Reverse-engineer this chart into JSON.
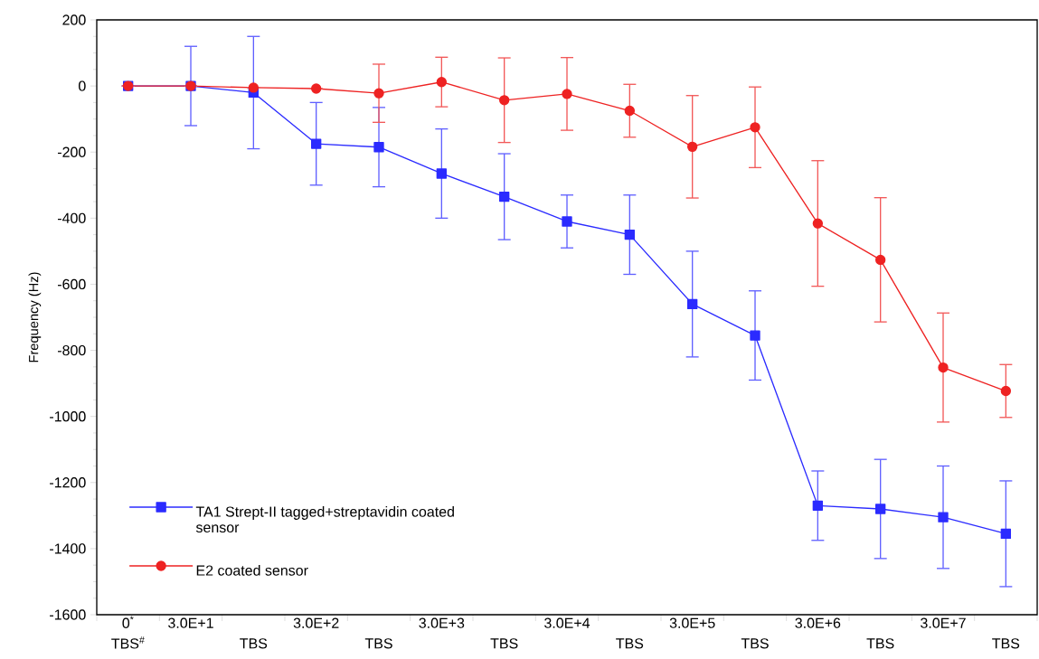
{
  "chart_data": {
    "type": "line",
    "ylabel": "Frequency (Hz)",
    "categories": [
      "0$^{*}$",
      "3.0E+1",
      "TBS",
      "3.0E+2",
      "TBS",
      "3.0E+3",
      "TBS",
      "3.0E+4",
      "TBS",
      "3.0E+5",
      "TBS",
      "3.0E+6",
      "TBS",
      "3.0E+7",
      "TBS"
    ],
    "annotations": [
      "TBS$^{#}$"
    ],
    "series": [
      {
        "name": "TA1 Strept-II tagged+streptavidin coated sensor",
        "color": "#2b2bff",
        "marker": "square",
        "values": [
          0,
          0,
          -20,
          -175,
          -185,
          -265,
          -335,
          -410,
          -450,
          -660,
          -755,
          -1270,
          -1280,
          -1305,
          -1355
        ],
        "errors": [
          null,
          120,
          170,
          125,
          120,
          135,
          130,
          80,
          120,
          160,
          135,
          105,
          150,
          155,
          160
        ]
      },
      {
        "name": "E2 coated sensor",
        "color": "#ee2222",
        "marker": "circle",
        "values": [
          0,
          0,
          -5,
          -8,
          -22,
          12,
          -43,
          -24,
          -75,
          -184,
          -125,
          -416,
          -526,
          -852,
          -923
        ],
        "errors": [
          null,
          null,
          null,
          null,
          88,
          75,
          128,
          110,
          80,
          155,
          122,
          190,
          188,
          165,
          80
        ]
      }
    ],
    "ylim": [
      -1600,
      200
    ],
    "yticks": [
      -1600,
      -1400,
      -1200,
      -1000,
      -800,
      -600,
      -400,
      -200,
      0,
      200
    ],
    "grid": false,
    "legend": "bottom left",
    "line_style": "solid"
  }
}
